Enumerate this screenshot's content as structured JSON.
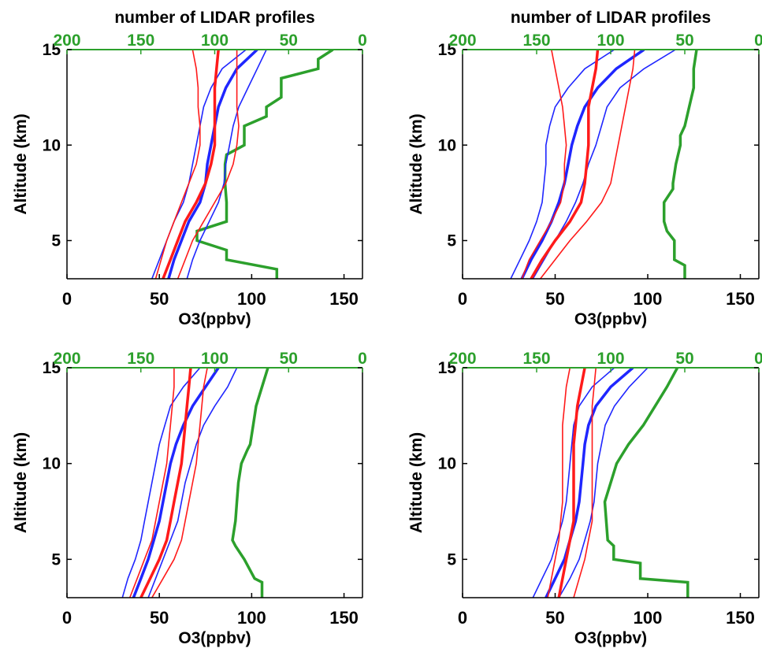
{
  "colors": {
    "ozone_mean_blue": "#1f26ff",
    "ozone_mean_red": "#ff1a1a",
    "profile_count_green": "#2ca02c",
    "axis": "#000000"
  },
  "chart_data": [
    {
      "type": "line",
      "title": "",
      "top_axis_label": "number of LIDAR profiles",
      "xlabel": "O3(ppbv)",
      "ylabel": "Altitude (km)",
      "xlim": [
        0,
        160
      ],
      "ylim": [
        3,
        15
      ],
      "xticks": [
        0,
        50,
        100,
        150
      ],
      "yticks": [
        5,
        10,
        15
      ],
      "top_xlim": [
        200,
        0
      ],
      "top_xticks": [
        200,
        150,
        100,
        50,
        0
      ],
      "grid": false,
      "series": [
        {
          "color": "blue",
          "role": "mean",
          "altitude": [
            3,
            4,
            5,
            6,
            7,
            8,
            9,
            10,
            11,
            12,
            13,
            14,
            15
          ],
          "ozone": [
            55,
            58,
            62,
            66,
            72,
            75,
            76,
            78,
            80,
            82,
            86,
            92,
            103
          ]
        },
        {
          "color": "blue",
          "role": "lower",
          "altitude": [
            3,
            4,
            5,
            6,
            7,
            8,
            9,
            10,
            11,
            12,
            13,
            14,
            15
          ],
          "ozone": [
            46,
            50,
            54,
            58,
            63,
            66,
            68,
            70,
            72,
            74,
            78,
            84,
            97
          ]
        },
        {
          "color": "blue",
          "role": "upper",
          "altitude": [
            3,
            4,
            5,
            6,
            7,
            8,
            9,
            10,
            11,
            12,
            13,
            14,
            15
          ],
          "ozone": [
            65,
            68,
            72,
            77,
            82,
            85,
            86,
            88,
            90,
            93,
            98,
            103,
            108
          ]
        },
        {
          "color": "red",
          "role": "mean",
          "altitude": [
            3,
            4,
            5,
            6,
            7,
            8,
            9,
            10,
            11,
            12,
            13,
            14,
            15
          ],
          "ozone": [
            52,
            56,
            60,
            64,
            70,
            75,
            78,
            80,
            80,
            80,
            80,
            81,
            82
          ]
        },
        {
          "color": "red",
          "role": "lower",
          "altitude": [
            3,
            4,
            5,
            6,
            7,
            8,
            9,
            10,
            11,
            12,
            13,
            14,
            15
          ],
          "ozone": [
            48,
            51,
            54,
            58,
            62,
            66,
            70,
            72,
            72,
            71,
            71,
            70,
            68
          ]
        },
        {
          "color": "red",
          "role": "upper",
          "altitude": [
            3,
            4,
            5,
            6,
            7,
            8,
            9,
            10,
            11,
            12,
            13,
            14,
            15
          ],
          "ozone": [
            60,
            64,
            68,
            74,
            80,
            86,
            90,
            92,
            93,
            92,
            92,
            92,
            92
          ]
        }
      ],
      "profile_counts": {
        "altitude": [
          3,
          3.5,
          4,
          4.5,
          5,
          5.5,
          6,
          7,
          8,
          9,
          9.5,
          10,
          10.5,
          11,
          11.5,
          12,
          12.5,
          13,
          13.5,
          14,
          14.5,
          15
        ],
        "count": [
          58,
          58,
          92,
          92,
          112,
          112,
          92,
          92,
          93,
          93,
          92,
          80,
          80,
          80,
          65,
          65,
          55,
          55,
          55,
          30,
          30,
          20
        ]
      }
    },
    {
      "type": "line",
      "title": "",
      "top_axis_label": "number of LIDAR profiles",
      "xlabel": "O3(ppbv)",
      "ylabel": "Altitude (km)",
      "xlim": [
        0,
        160
      ],
      "ylim": [
        3,
        15
      ],
      "xticks": [
        0,
        50,
        100,
        150
      ],
      "yticks": [
        5,
        10,
        15
      ],
      "top_xlim": [
        200,
        0
      ],
      "top_xticks": [
        200,
        150,
        100,
        50,
        0
      ],
      "grid": false,
      "series": [
        {
          "color": "blue",
          "role": "mean",
          "altitude": [
            3,
            4,
            5,
            6,
            7,
            8,
            9,
            10,
            11,
            12,
            13,
            14,
            15
          ],
          "ozone": [
            32,
            37,
            43,
            48,
            52,
            55,
            57,
            59,
            62,
            66,
            73,
            83,
            98
          ]
        },
        {
          "color": "blue",
          "role": "lower",
          "altitude": [
            3,
            4,
            5,
            6,
            7,
            8,
            9,
            10,
            11,
            12,
            13,
            14,
            15
          ],
          "ozone": [
            26,
            31,
            36,
            40,
            43,
            44,
            45,
            45,
            47,
            50,
            57,
            66,
            82
          ]
        },
        {
          "color": "blue",
          "role": "upper",
          "altitude": [
            3,
            4,
            5,
            6,
            7,
            8,
            9,
            10,
            11,
            12,
            13,
            14,
            15
          ],
          "ozone": [
            38,
            44,
            50,
            56,
            61,
            65,
            68,
            72,
            75,
            78,
            85,
            98,
            115
          ]
        },
        {
          "color": "red",
          "role": "mean",
          "altitude": [
            3,
            4,
            5,
            6,
            7,
            8,
            9,
            10,
            11,
            12,
            13,
            14,
            15
          ],
          "ozone": [
            37,
            43,
            50,
            58,
            64,
            66,
            67,
            68,
            68,
            68,
            70,
            72,
            73
          ]
        },
        {
          "color": "red",
          "role": "lower",
          "altitude": [
            3,
            4,
            5,
            6,
            7,
            8,
            9,
            10,
            11,
            12,
            13,
            14,
            15
          ],
          "ozone": [
            32,
            36,
            42,
            48,
            53,
            55,
            55,
            56,
            55,
            54,
            52,
            50,
            48
          ]
        },
        {
          "color": "red",
          "role": "upper",
          "altitude": [
            3,
            4,
            5,
            6,
            7,
            8,
            9,
            10,
            11,
            12,
            13,
            14,
            15
          ],
          "ozone": [
            42,
            50,
            58,
            67,
            75,
            80,
            82,
            84,
            86,
            88,
            90,
            92,
            93
          ]
        }
      ],
      "profile_counts": {
        "altitude": [
          3,
          3.7,
          4,
          5,
          5.5,
          6,
          7,
          7.7,
          8,
          9,
          10,
          10.5,
          11,
          12,
          13,
          14,
          15
        ],
        "count": [
          50,
          50,
          57,
          57,
          62,
          64,
          64,
          58,
          58,
          56,
          53,
          53,
          50,
          47,
          44,
          44,
          42
        ]
      }
    },
    {
      "type": "line",
      "title": "",
      "top_axis_label": "",
      "xlabel": "O3(ppbv)",
      "ylabel": "Altitude (km)",
      "xlim": [
        0,
        160
      ],
      "ylim": [
        3,
        15
      ],
      "xticks": [
        0,
        50,
        100,
        150
      ],
      "yticks": [
        5,
        10,
        15
      ],
      "top_xlim": [
        200,
        0
      ],
      "top_xticks": [
        200,
        150,
        100,
        50,
        0
      ],
      "grid": false,
      "series": [
        {
          "color": "blue",
          "role": "mean",
          "altitude": [
            3,
            4,
            5,
            6,
            7,
            8,
            9,
            10,
            11,
            12,
            13,
            14,
            15
          ],
          "ozone": [
            36,
            40,
            44,
            47,
            50,
            52,
            54,
            56,
            59,
            63,
            68,
            75,
            82
          ]
        },
        {
          "color": "blue",
          "role": "lower",
          "altitude": [
            3,
            4,
            5,
            6,
            7,
            8,
            9,
            10,
            11,
            12,
            13,
            14,
            15
          ],
          "ozone": [
            30,
            33,
            37,
            40,
            42,
            44,
            46,
            48,
            50,
            53,
            56,
            63,
            72
          ]
        },
        {
          "color": "blue",
          "role": "upper",
          "altitude": [
            3,
            4,
            5,
            6,
            7,
            8,
            9,
            10,
            11,
            12,
            13,
            14,
            15
          ],
          "ozone": [
            44,
            48,
            52,
            56,
            60,
            62,
            64,
            67,
            70,
            74,
            80,
            87,
            92
          ]
        },
        {
          "color": "red",
          "role": "mean",
          "altitude": [
            3,
            4,
            5,
            6,
            7,
            8,
            9,
            10,
            11,
            12,
            13,
            14,
            15
          ],
          "ozone": [
            40,
            45,
            50,
            54,
            56,
            58,
            60,
            62,
            63,
            64,
            65,
            66,
            67
          ]
        },
        {
          "color": "red",
          "role": "lower",
          "altitude": [
            3,
            4,
            5,
            6,
            7,
            8,
            9,
            10,
            11,
            12,
            13,
            14,
            15
          ],
          "ozone": [
            34,
            38,
            42,
            46,
            48,
            50,
            52,
            54,
            55,
            56,
            57,
            58,
            58
          ]
        },
        {
          "color": "red",
          "role": "upper",
          "altitude": [
            3,
            4,
            5,
            6,
            7,
            8,
            9,
            10,
            11,
            12,
            13,
            14,
            15
          ],
          "ozone": [
            46,
            52,
            58,
            62,
            64,
            66,
            68,
            70,
            71,
            72,
            73,
            74,
            76
          ]
        }
      ],
      "profile_counts": {
        "altitude": [
          3,
          3.8,
          4,
          5,
          5.7,
          6,
          7,
          8,
          9,
          10,
          10.7,
          11,
          12,
          13,
          14,
          15
        ],
        "count": [
          68,
          68,
          73,
          80,
          86,
          88,
          86,
          85,
          84,
          82,
          78,
          76,
          74,
          72,
          68,
          64
        ]
      }
    },
    {
      "type": "line",
      "title": "",
      "top_axis_label": "",
      "xlabel": "O3(ppbv)",
      "ylabel": "Altitude (km)",
      "xlim": [
        0,
        160
      ],
      "ylim": [
        3,
        15
      ],
      "xticks": [
        0,
        50,
        100,
        150
      ],
      "yticks": [
        5,
        10,
        15
      ],
      "top_xlim": [
        200,
        0
      ],
      "top_xticks": [
        200,
        150,
        100,
        50,
        0
      ],
      "grid": false,
      "series": [
        {
          "color": "blue",
          "role": "mean",
          "altitude": [
            3,
            4,
            5,
            6,
            7,
            8,
            9,
            10,
            11,
            12,
            13,
            14,
            15
          ],
          "ozone": [
            45,
            50,
            55,
            58,
            61,
            63,
            64,
            65,
            66,
            68,
            72,
            80,
            92
          ]
        },
        {
          "color": "blue",
          "role": "lower",
          "altitude": [
            3,
            4,
            5,
            6,
            7,
            8,
            9,
            10,
            11,
            12,
            13,
            14,
            15
          ],
          "ozone": [
            38,
            43,
            48,
            51,
            54,
            56,
            57,
            58,
            59,
            60,
            63,
            70,
            82
          ]
        },
        {
          "color": "blue",
          "role": "upper",
          "altitude": [
            3,
            4,
            5,
            6,
            7,
            8,
            9,
            10,
            11,
            12,
            13,
            14,
            15
          ],
          "ozone": [
            52,
            58,
            63,
            66,
            69,
            71,
            72,
            73,
            75,
            77,
            82,
            90,
            100
          ]
        },
        {
          "color": "red",
          "role": "mean",
          "altitude": [
            3,
            4,
            5,
            6,
            7,
            8,
            9,
            10,
            11,
            12,
            13,
            14,
            15
          ],
          "ozone": [
            52,
            54,
            56,
            58,
            60,
            60,
            60,
            60,
            60,
            61,
            62,
            64,
            66
          ]
        },
        {
          "color": "red",
          "role": "lower",
          "altitude": [
            3,
            4,
            5,
            6,
            7,
            8,
            9,
            10,
            11,
            12,
            13,
            14,
            15
          ],
          "ozone": [
            46,
            48,
            50,
            52,
            53,
            54,
            54,
            54,
            54,
            54,
            55,
            56,
            58
          ]
        },
        {
          "color": "red",
          "role": "upper",
          "altitude": [
            3,
            4,
            5,
            6,
            7,
            8,
            9,
            10,
            11,
            12,
            13,
            14,
            15
          ],
          "ozone": [
            60,
            63,
            66,
            68,
            70,
            70,
            70,
            70,
            70,
            70,
            70,
            71,
            72
          ]
        }
      ],
      "profile_counts": {
        "altitude": [
          3,
          3.8,
          4,
          4.8,
          5,
          5.7,
          6,
          8,
          9,
          10,
          10.5,
          11,
          12,
          13,
          14,
          15
        ],
        "count": [
          48,
          48,
          80,
          80,
          98,
          98,
          102,
          104,
          100,
          96,
          92,
          88,
          78,
          70,
          62,
          55
        ]
      }
    }
  ]
}
